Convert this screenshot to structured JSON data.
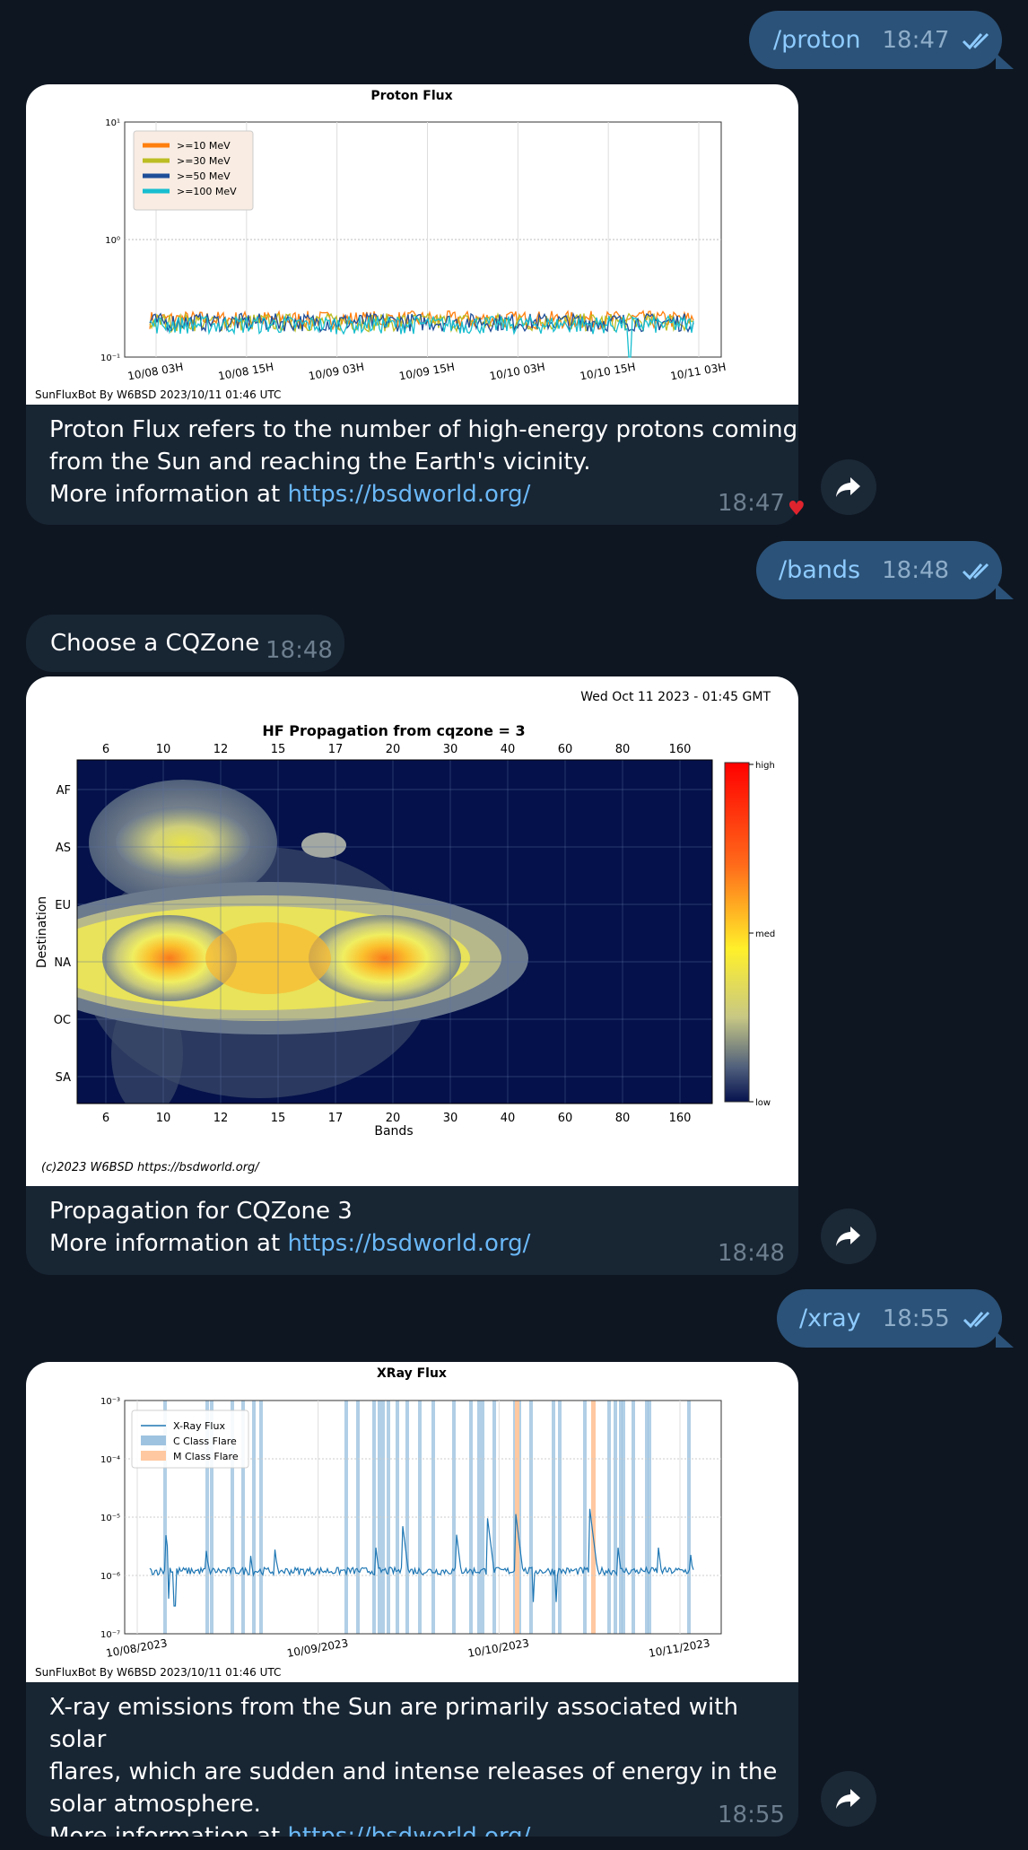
{
  "messages": {
    "proton_cmd": {
      "text": "/proton",
      "time": "18:47"
    },
    "proton": {
      "caption_1": "Proton Flux refers to the number of high-energy protons coming",
      "caption_2": "from the Sun and reaching the Earth's vicinity.",
      "more": "More information at ",
      "link": "https://bsdworld.org/",
      "time": "18:47",
      "reaction": "heart"
    },
    "bands_cmd": {
      "text": "/bands",
      "time": "18:48"
    },
    "choose": {
      "text": "Choose a CQZone",
      "time": "18:48"
    },
    "bands": {
      "caption_1": "Propagation for CQZone 3",
      "more": "More information at ",
      "link": "https://bsdworld.org/",
      "time": "18:48"
    },
    "xray_cmd": {
      "text": "/xray",
      "time": "18:55"
    },
    "xray": {
      "caption_1": "X-ray emissions from the Sun are primarily associated with solar",
      "caption_2": "flares, which are sudden and intense releases of energy in the",
      "caption_3": "solar atmosphere.",
      "more": "More information at ",
      "link": "https://bsdworld.org/",
      "time": "18:55"
    }
  },
  "chart_data": [
    {
      "type": "line",
      "title": "Proton Flux",
      "yscale": "log",
      "ylim": [
        0.1,
        10
      ],
      "y_ticks": [
        "10⁻¹",
        "10⁰",
        "10¹"
      ],
      "x_ticks": [
        "10/08 03H",
        "10/08 15H",
        "10/09 03H",
        "10/09 15H",
        "10/10 03H",
        "10/10 15H",
        "10/11 03H"
      ],
      "series": [
        {
          "name": ">=10 MeV",
          "color": "#ff7f0e",
          "baseline": 0.21
        },
        {
          "name": ">=30 MeV",
          "color": "#bcbd22",
          "baseline": 0.2
        },
        {
          "name": ">=50 MeV",
          "color": "#1f4e99",
          "baseline": 0.2
        },
        {
          "name": ">=100 MeV",
          "color": "#17becf",
          "baseline": 0.19
        }
      ],
      "legend": "top-left",
      "grid": true,
      "footer": "SunFluxBot By W6BSD 2023/10/11 01:46 UTC"
    },
    {
      "type": "heatmap",
      "title": "HF Propagation from cqzone = 3",
      "timestamp": "Wed Oct 11 2023 - 01:45 GMT",
      "xlabel": "Bands",
      "ylabel": "Destination",
      "x_ticks": [
        "6",
        "10",
        "12",
        "15",
        "17",
        "20",
        "30",
        "40",
        "60",
        "80",
        "160"
      ],
      "y_ticks": [
        "AF",
        "AS",
        "EU",
        "NA",
        "OC",
        "SA"
      ],
      "colorbar": [
        "high",
        "med",
        "low"
      ],
      "hotspots": [
        {
          "band": "10",
          "dest": "NA",
          "level": "high"
        },
        {
          "band": "20",
          "dest": "NA",
          "level": "high"
        },
        {
          "band": "15",
          "dest": "NA",
          "level": "med"
        },
        {
          "band": "10",
          "dest": "AS",
          "level": "med"
        },
        {
          "band": "17",
          "dest": "AS",
          "level": "low"
        }
      ],
      "footer": "(c)2023 W6BSD https://bsdworld.org/"
    },
    {
      "type": "line",
      "title": "XRay Flux",
      "yscale": "log",
      "ylim": [
        1e-07,
        0.001
      ],
      "y_ticks": [
        "10⁻³",
        "10⁻⁴",
        "10⁻⁵",
        "10⁻⁶",
        "10⁻⁷"
      ],
      "x_ticks": [
        "10/08/2023",
        "10/09/2023",
        "10/10/2023",
        "10/11/2023"
      ],
      "series": [
        {
          "name": "X-Ray Flux",
          "color": "#1f77b4",
          "baseline": 1.2e-06
        }
      ],
      "bands": [
        {
          "name": "C Class Flare",
          "color": "#9ec3e0"
        },
        {
          "name": "M Class Flare",
          "color": "#ffc8a0"
        }
      ],
      "legend": "top-left",
      "grid": true,
      "footer": "SunFluxBot By W6BSD 2023/10/11 01:46 UTC"
    }
  ]
}
